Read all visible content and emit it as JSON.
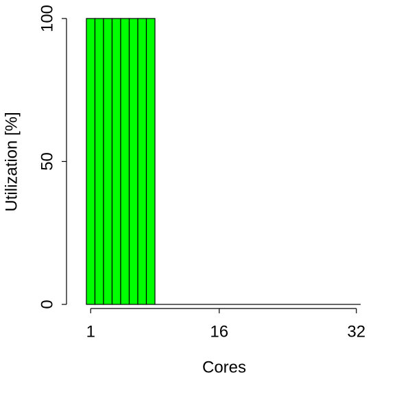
{
  "chart_data": {
    "type": "bar",
    "x_label": "Cores",
    "y_label": "Utilization [%]",
    "categories": [
      1,
      null,
      null,
      null,
      null,
      null,
      null,
      null,
      null,
      null,
      null,
      null,
      null,
      null,
      null,
      16,
      null,
      null,
      null,
      null,
      null,
      null,
      null,
      null,
      null,
      null,
      null,
      null,
      null,
      null,
      null,
      32
    ],
    "values": [
      100,
      100,
      100,
      100,
      100,
      100,
      100,
      100,
      0,
      0,
      0,
      0,
      0,
      0,
      0,
      0,
      0,
      0,
      0,
      0,
      0,
      0,
      0,
      0,
      0,
      0,
      0,
      0,
      0,
      0,
      0,
      0
    ],
    "color": "#00ff00",
    "ylim": [
      0,
      100
    ],
    "yticks": [
      0,
      50,
      100
    ],
    "grid": false
  }
}
